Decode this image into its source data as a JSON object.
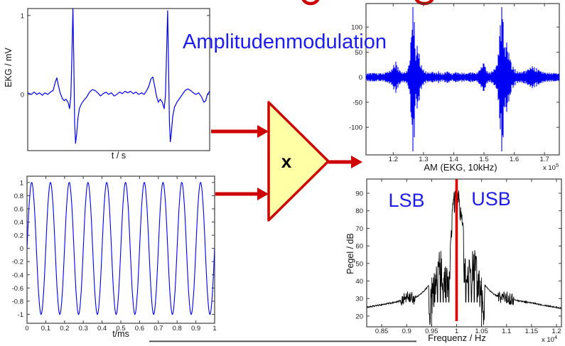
{
  "title": {
    "text": "Amplitudenmodulation"
  },
  "multiplier": {
    "symbol": "x"
  },
  "colors": {
    "accent_blue": "#1C1CEF",
    "trace_blue": "#0000F5",
    "arrow_red": "#CE0000",
    "carrier_line_red": "#E60000",
    "triangle_fill": "#FFFFA6",
    "spectrum_trace": "#000000",
    "axis_frame": "#3D3D3D"
  },
  "chart_data": [
    {
      "id": "ekg",
      "type": "line",
      "xlabel": "t / s",
      "ylabel": "EKG / mV",
      "xlim": [
        0,
        1
      ],
      "ylim": [
        -0.71,
        1.09
      ],
      "xticks": [],
      "yticks": [
        1,
        0
      ],
      "series": [
        {
          "name": "EKG",
          "points": [
            [
              0,
              0.02
            ],
            [
              0.02,
              0
            ],
            [
              0.035,
              0.03
            ],
            [
              0.05,
              0
            ],
            [
              0.065,
              0.02
            ],
            [
              0.08,
              -0.01
            ],
            [
              0.095,
              0.02
            ],
            [
              0.11,
              0
            ],
            [
              0.125,
              0.03
            ],
            [
              0.14,
              0.05
            ],
            [
              0.152,
              0.16
            ],
            [
              0.16,
              0.21
            ],
            [
              0.168,
              0.12
            ],
            [
              0.178,
              0.02
            ],
            [
              0.19,
              -0.05
            ],
            [
              0.2,
              -0.08
            ],
            [
              0.21,
              -0.06
            ],
            [
              0.222,
              -0.1
            ],
            [
              0.23,
              -0.18
            ],
            [
              0.237,
              -0.02
            ],
            [
              0.243,
              0.5
            ],
            [
              0.2485,
              1.09
            ],
            [
              0.2535,
              0.4
            ],
            [
              0.258,
              -0.35
            ],
            [
              0.263,
              -0.62
            ],
            [
              0.269,
              -0.5
            ],
            [
              0.276,
              -0.3
            ],
            [
              0.284,
              -0.18
            ],
            [
              0.295,
              -0.12
            ],
            [
              0.31,
              -0.07
            ],
            [
              0.325,
              -0.03
            ],
            [
              0.34,
              0.03
            ],
            [
              0.355,
              0.06
            ],
            [
              0.37,
              0.05
            ],
            [
              0.385,
              0.02
            ],
            [
              0.4,
              -0.02
            ],
            [
              0.415,
              0.01
            ],
            [
              0.43,
              0.03
            ],
            [
              0.445,
              0
            ],
            [
              0.46,
              0.02
            ],
            [
              0.475,
              -0.02
            ],
            [
              0.49,
              0
            ],
            [
              0.505,
              0.03
            ],
            [
              0.52,
              0.01
            ],
            [
              0.535,
              0.04
            ],
            [
              0.55,
              0.02
            ],
            [
              0.565,
              0.04
            ],
            [
              0.58,
              0.01
            ],
            [
              0.595,
              0.03
            ],
            [
              0.61,
              0
            ],
            [
              0.625,
              0.02
            ],
            [
              0.64,
              0
            ],
            [
              0.652,
              0.04
            ],
            [
              0.665,
              0.1
            ],
            [
              0.678,
              0.2
            ],
            [
              0.688,
              0.22
            ],
            [
              0.698,
              0.1
            ],
            [
              0.708,
              -0.02
            ],
            [
              0.718,
              -0.1
            ],
            [
              0.728,
              -0.06
            ],
            [
              0.74,
              -0.1
            ],
            [
              0.75,
              -0.18
            ],
            [
              0.757,
              -0.02
            ],
            [
              0.763,
              0.5
            ],
            [
              0.769,
              1.06
            ],
            [
              0.774,
              0.4
            ],
            [
              0.779,
              -0.35
            ],
            [
              0.784,
              -0.6
            ],
            [
              0.79,
              -0.48
            ],
            [
              0.797,
              -0.28
            ],
            [
              0.807,
              -0.16
            ],
            [
              0.82,
              -0.1
            ],
            [
              0.835,
              -0.05
            ],
            [
              0.85,
              0
            ],
            [
              0.865,
              0.05
            ],
            [
              0.88,
              0.07
            ],
            [
              0.895,
              0.05
            ],
            [
              0.91,
              0.02
            ],
            [
              0.925,
              0
            ],
            [
              0.94,
              0.02
            ],
            [
              0.955,
              -0.03
            ],
            [
              0.968,
              -0.1
            ],
            [
              0.978,
              -0.08
            ],
            [
              0.988,
              0
            ],
            [
              1,
              0.04
            ]
          ]
        }
      ]
    },
    {
      "id": "carrier",
      "type": "line",
      "xlabel": "t/ms",
      "xlim": [
        0,
        1
      ],
      "ylim": [
        -1.13,
        1.09
      ],
      "xticks": [
        0,
        0.1,
        0.2,
        0.3,
        0.4,
        0.5,
        0.6,
        0.7,
        0.8,
        0.9,
        1
      ],
      "yticks": [
        1,
        0.8,
        0.6,
        0.4,
        0.2,
        0,
        -0.2,
        -0.4,
        -0.6,
        -0.8,
        -1
      ],
      "signal": {
        "kind": "sine",
        "cycles": 10,
        "amplitude": 1
      }
    },
    {
      "id": "am",
      "type": "line",
      "xlabel": "AM (EKG, 10kHz)",
      "x_scale_base": "x 10",
      "x_scale_exp": "5",
      "xlim": [
        1.11,
        1.75
      ],
      "ylim": [
        -150,
        141
      ],
      "xticks": [
        1.2,
        1.3,
        1.4,
        1.5,
        1.6,
        1.7
      ],
      "yticks": [
        100,
        50,
        0,
        -50,
        -100
      ],
      "envelope": [
        [
          1.11,
          8
        ],
        [
          1.14,
          9
        ],
        [
          1.16,
          8
        ],
        [
          1.18,
          11
        ],
        [
          1.195,
          16
        ],
        [
          1.205,
          30
        ],
        [
          1.21,
          34
        ],
        [
          1.216,
          20
        ],
        [
          1.225,
          11
        ],
        [
          1.235,
          10
        ],
        [
          1.245,
          13
        ],
        [
          1.252,
          26
        ],
        [
          1.257,
          60
        ],
        [
          1.261,
          110
        ],
        [
          1.264,
          140
        ],
        [
          1.267,
          120
        ],
        [
          1.27,
          72
        ],
        [
          1.274,
          48
        ],
        [
          1.278,
          66
        ],
        [
          1.283,
          60
        ],
        [
          1.288,
          42
        ],
        [
          1.293,
          26
        ],
        [
          1.3,
          16
        ],
        [
          1.31,
          11
        ],
        [
          1.32,
          9
        ],
        [
          1.33,
          11
        ],
        [
          1.34,
          9
        ],
        [
          1.35,
          12
        ],
        [
          1.36,
          8
        ],
        [
          1.37,
          10
        ],
        [
          1.38,
          12
        ],
        [
          1.39,
          8
        ],
        [
          1.4,
          9
        ],
        [
          1.41,
          11
        ],
        [
          1.42,
          8
        ],
        [
          1.43,
          10
        ],
        [
          1.44,
          7
        ],
        [
          1.45,
          9
        ],
        [
          1.46,
          11
        ],
        [
          1.47,
          8
        ],
        [
          1.48,
          10
        ],
        [
          1.487,
          16
        ],
        [
          1.494,
          26
        ],
        [
          1.5,
          30
        ],
        [
          1.506,
          18
        ],
        [
          1.513,
          11
        ],
        [
          1.52,
          10
        ],
        [
          1.53,
          14
        ],
        [
          1.54,
          22
        ],
        [
          1.547,
          46
        ],
        [
          1.552,
          92
        ],
        [
          1.556,
          130
        ],
        [
          1.559,
          140
        ],
        [
          1.562,
          112
        ],
        [
          1.566,
          72
        ],
        [
          1.57,
          56
        ],
        [
          1.574,
          74
        ],
        [
          1.579,
          62
        ],
        [
          1.585,
          44
        ],
        [
          1.59,
          30
        ],
        [
          1.6,
          18
        ],
        [
          1.61,
          12
        ],
        [
          1.62,
          10
        ],
        [
          1.63,
          12
        ],
        [
          1.64,
          14
        ],
        [
          1.65,
          18
        ],
        [
          1.66,
          22
        ],
        [
          1.67,
          21
        ],
        [
          1.68,
          16
        ],
        [
          1.69,
          12
        ],
        [
          1.7,
          10
        ],
        [
          1.72,
          9
        ],
        [
          1.74,
          8
        ],
        [
          1.749,
          7
        ]
      ],
      "needle_spikes_x": [
        1.264,
        1.559
      ]
    },
    {
      "id": "spectrum",
      "type": "line",
      "xlabel": "Frequenz / Hz",
      "ylabel": "Pegel / dB",
      "x_scale_base": "x 10",
      "x_scale_exp": "4",
      "xlim": [
        0.82,
        1.21
      ],
      "ylim": [
        14,
        98
      ],
      "xticks": [
        0.85,
        0.9,
        0.95,
        1,
        1.05,
        1.1,
        1.15,
        1.2
      ],
      "yticks": [
        20,
        30,
        40,
        50,
        60,
        70,
        80,
        90
      ],
      "carrier_marker_x": 1,
      "drop_lines": [
        0.95,
        1.05
      ],
      "annotations": [
        {
          "text": "LSB",
          "x": 0.93
        },
        {
          "text": "USB",
          "x": 1.07
        }
      ],
      "envelope_dB": [
        [
          0.82,
          25
        ],
        [
          0.84,
          26
        ],
        [
          0.86,
          27
        ],
        [
          0.88,
          28
        ],
        [
          0.89,
          29
        ],
        [
          0.895,
          30
        ],
        [
          0.9,
          30.5
        ],
        [
          0.905,
          31
        ],
        [
          0.91,
          30.5
        ],
        [
          0.915,
          30
        ],
        [
          0.92,
          31
        ],
        [
          0.925,
          32
        ],
        [
          0.93,
          33
        ],
        [
          0.935,
          34.5
        ],
        [
          0.94,
          36
        ],
        [
          0.945,
          38
        ],
        [
          0.95,
          42
        ],
        [
          0.955,
          50
        ],
        [
          0.96,
          57
        ],
        [
          0.963,
          62
        ],
        [
          0.966,
          64
        ],
        [
          0.97,
          62
        ],
        [
          0.974,
          59
        ],
        [
          0.978,
          55
        ],
        [
          0.982,
          52
        ],
        [
          0.985,
          57
        ],
        [
          0.988,
          70
        ],
        [
          0.99,
          80
        ],
        [
          0.992,
          88
        ],
        [
          0.995,
          93
        ],
        [
          0.998,
          95.5
        ],
        [
          1,
          96
        ],
        [
          1.002,
          95.5
        ],
        [
          1.005,
          93
        ],
        [
          1.008,
          88
        ],
        [
          1.01,
          82
        ],
        [
          1.013,
          72
        ],
        [
          1.016,
          60
        ],
        [
          1.02,
          54
        ],
        [
          1.025,
          58
        ],
        [
          1.03,
          62
        ],
        [
          1.034,
          64
        ],
        [
          1.038,
          62
        ],
        [
          1.042,
          57
        ],
        [
          1.046,
          50
        ],
        [
          1.05,
          42
        ],
        [
          1.055,
          38
        ],
        [
          1.06,
          36.5
        ],
        [
          1.065,
          35
        ],
        [
          1.07,
          33.5
        ],
        [
          1.075,
          32.5
        ],
        [
          1.08,
          31.5
        ],
        [
          1.085,
          31
        ],
        [
          1.09,
          30.5
        ],
        [
          1.095,
          31
        ],
        [
          1.1,
          30.5
        ],
        [
          1.105,
          30
        ],
        [
          1.11,
          29.5
        ],
        [
          1.12,
          29
        ],
        [
          1.13,
          28.5
        ],
        [
          1.14,
          28
        ],
        [
          1.16,
          27
        ],
        [
          1.18,
          26
        ],
        [
          1.2,
          25
        ],
        [
          1.21,
          24.5
        ]
      ],
      "noise_regions": [
        {
          "from": 0.888,
          "to": 0.918,
          "amp": 3.5
        },
        {
          "from": 0.944,
          "to": 0.988,
          "amp": 26
        },
        {
          "from": 0.988,
          "to": 1.012,
          "amp": 10
        },
        {
          "from": 1.014,
          "to": 1.056,
          "amp": 26
        },
        {
          "from": 1.083,
          "to": 1.115,
          "amp": 3.5
        }
      ]
    }
  ]
}
